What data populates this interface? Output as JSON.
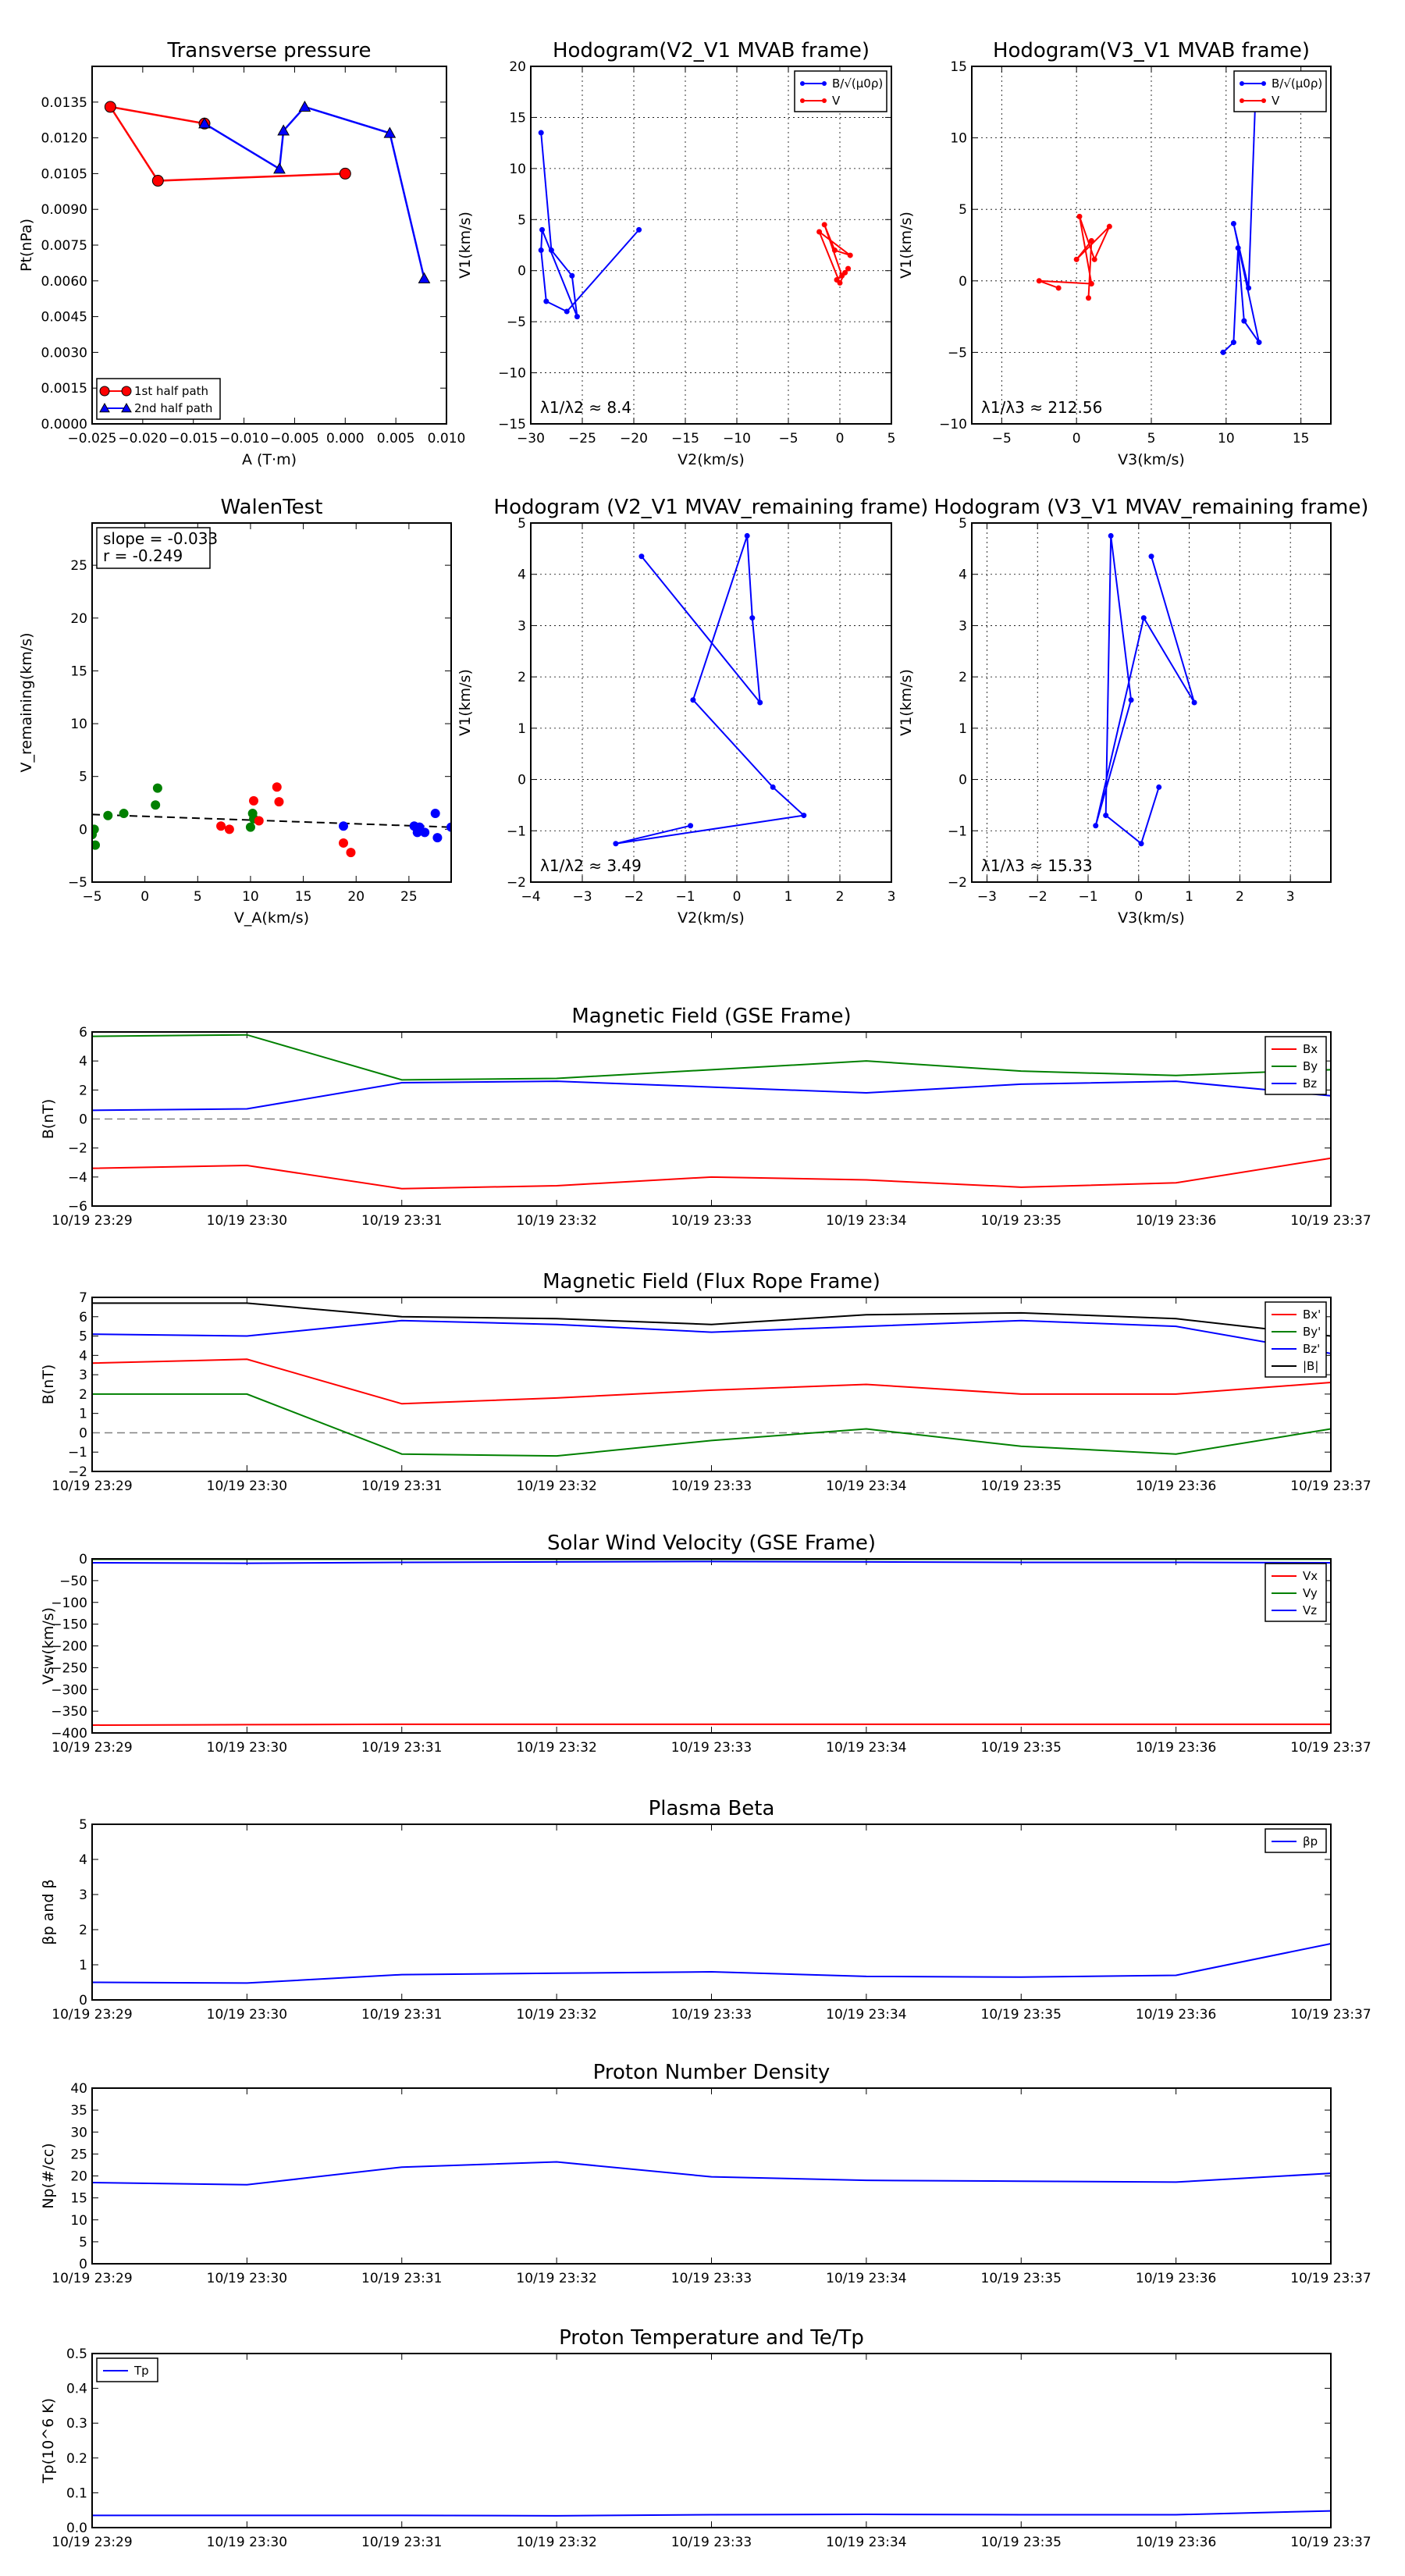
{
  "chart_data": [
    {
      "id": "tp",
      "type": "line",
      "title": "Transverse pressure",
      "xlabel": "A (T·m)",
      "ylabel": "Pt(nPa)",
      "xlim": [
        -0.025,
        0.01
      ],
      "ylim": [
        0,
        0.015
      ],
      "x_ticks": [
        "−0.025",
        "−0.020",
        "−0.015",
        "−0.010",
        "−0.005",
        "0.000",
        "0.005",
        "0.010"
      ],
      "y_ticks": [
        "0.0000",
        "0.0015",
        "0.0030",
        "0.0045",
        "0.0060",
        "0.0075",
        "0.0090",
        "0.0105",
        "0.0120",
        "0.0135"
      ],
      "legend": "lower-left",
      "series": [
        {
          "name": "1st half path",
          "color": "#ff0000",
          "marker": "circle",
          "x": [
            0.0,
            -0.0185,
            -0.0232,
            -0.0139
          ],
          "y": [
            0.0105,
            0.0102,
            0.0133,
            0.0126
          ]
        },
        {
          "name": "2nd half path",
          "color": "#0000ff",
          "marker": "triangle",
          "x": [
            -0.0139,
            -0.0065,
            -0.0061,
            -0.004,
            0.0044,
            0.0078
          ],
          "y": [
            0.0126,
            0.0107,
            0.0123,
            0.0133,
            0.0122,
            0.0061
          ]
        }
      ]
    },
    {
      "id": "hodo1",
      "type": "line",
      "title": "Hodogram(V2_V1 MVAB frame)",
      "xlabel": "V2(km/s)",
      "ylabel": "V1(km/s)",
      "xlim": [
        -30,
        5
      ],
      "ylim": [
        -15,
        20
      ],
      "grid": true,
      "x_ticks": [
        "−30",
        "−25",
        "−20",
        "−15",
        "−10",
        "−5",
        "0",
        "5"
      ],
      "y_ticks": [
        "−15",
        "−10",
        "−5",
        "0",
        "5",
        "10",
        "15",
        "20"
      ],
      "annotation": "λ1/λ2 ≈ 8.4",
      "legend": "top-right",
      "series": [
        {
          "name": "B/√(μ0ρ)",
          "color": "#0000ff",
          "x": [
            -19.5,
            -26.5,
            -28.5,
            -29.0,
            -28.9,
            -25.5,
            -26.0,
            -28.0,
            -29.0
          ],
          "y": [
            4.0,
            -4.0,
            -3.0,
            2.0,
            4.0,
            -4.5,
            -0.5,
            2.0,
            13.5
          ]
        },
        {
          "name": "V",
          "color": "#ff0000",
          "x": [
            0.2,
            -1.5,
            -0.5,
            1.0,
            -2.0,
            0.0,
            0.5,
            -0.3,
            0.8
          ],
          "y": [
            -0.5,
            4.5,
            2.0,
            1.5,
            3.8,
            -1.2,
            -0.2,
            -0.9,
            0.2
          ]
        }
      ]
    },
    {
      "id": "hodo2",
      "type": "line",
      "title": "Hodogram(V3_V1 MVAB frame)",
      "xlabel": "V3(km/s)",
      "ylabel": "V1(km/s)",
      "xlim": [
        -7,
        17
      ],
      "ylim": [
        -10,
        15
      ],
      "grid": true,
      "x_ticks": [
        "−5",
        "0",
        "5",
        "10",
        "15"
      ],
      "y_ticks": [
        "−10",
        "−5",
        "0",
        "5",
        "10",
        "15"
      ],
      "annotation": "λ1/λ3 ≈ 212.56",
      "legend": "top-right",
      "series": [
        {
          "name": "B/√(μ0ρ)",
          "color": "#0000ff",
          "x": [
            9.8,
            10.5,
            10.8,
            11.2,
            12.2,
            10.5,
            11.5,
            12.0
          ],
          "y": [
            -5.0,
            -4.3,
            2.3,
            -2.8,
            -4.3,
            4.0,
            -0.5,
            14.0
          ]
        },
        {
          "name": "V",
          "color": "#ff0000",
          "x": [
            -1.2,
            -2.5,
            1.0,
            0.2,
            1.2,
            2.2,
            0.0,
            1.0,
            0.8
          ],
          "y": [
            -0.5,
            0.0,
            -0.2,
            4.5,
            1.5,
            3.8,
            1.5,
            2.8,
            -1.2
          ]
        }
      ]
    },
    {
      "id": "walen",
      "type": "scatter",
      "title": "WalenTest",
      "xlabel": "V_A(km/s)",
      "ylabel": "V_remaining(km/s)",
      "xlim": [
        -5,
        29
      ],
      "ylim": [
        -5,
        29
      ],
      "x_ticks": [
        "−5",
        "0",
        "5",
        "10",
        "15",
        "20",
        "25"
      ],
      "y_ticks": [
        "−5",
        "0",
        "5",
        "10",
        "15",
        "20",
        "25"
      ],
      "annotation": [
        "slope = -0.033",
        "r = -0.249"
      ],
      "fit_line": {
        "x": [
          -5,
          29
        ],
        "y": [
          1.4,
          0.2
        ]
      },
      "series": [
        {
          "name": "green",
          "color": "#008000",
          "x": [
            -5.0,
            -4.8,
            -4.7,
            -3.5,
            -2.0,
            1.0,
            1.2,
            10.0,
            10.2,
            10.3
          ],
          "y": [
            -0.5,
            0.0,
            -1.5,
            1.3,
            1.5,
            2.3,
            3.9,
            0.2,
            1.5,
            1.0
          ]
        },
        {
          "name": "red",
          "color": "#ff0000",
          "x": [
            7.2,
            8.0,
            10.3,
            10.8,
            12.5,
            12.7,
            18.8,
            19.5
          ],
          "y": [
            0.3,
            0.0,
            2.7,
            0.8,
            4.0,
            2.6,
            -1.3,
            -2.2
          ]
        },
        {
          "name": "blue",
          "color": "#0000ff",
          "x": [
            18.8,
            25.5,
            25.8,
            26.0,
            26.5,
            27.5,
            27.7,
            29.0
          ],
          "y": [
            0.3,
            0.3,
            -0.3,
            0.2,
            -0.3,
            1.5,
            -0.8,
            0.2
          ]
        }
      ]
    },
    {
      "id": "hodo3",
      "type": "line",
      "title": "Hodogram (V2_V1 MVAV_remaining frame)",
      "xlabel": "V2(km/s)",
      "ylabel": "V1(km/s)",
      "xlim": [
        -4,
        3
      ],
      "ylim": [
        -2,
        5
      ],
      "grid": true,
      "x_ticks": [
        "−4",
        "−3",
        "−2",
        "−1",
        "0",
        "1",
        "2",
        "3"
      ],
      "y_ticks": [
        "−2",
        "−1",
        "0",
        "1",
        "2",
        "3",
        "4",
        "5"
      ],
      "annotation": "λ1/λ2 ≈ 3.49",
      "series": [
        {
          "name": "blue",
          "color": "#0000ff",
          "x": [
            -0.9,
            -2.35,
            1.3,
            0.7,
            -0.85,
            0.2,
            0.3,
            0.45,
            -1.85
          ],
          "y": [
            -0.9,
            -1.25,
            -0.7,
            -0.15,
            1.55,
            4.75,
            3.15,
            1.5,
            4.35
          ]
        }
      ]
    },
    {
      "id": "hodo4",
      "type": "line",
      "title": "Hodogram (V3_V1 MVAV_remaining frame)",
      "xlabel": "V3(km/s)",
      "ylabel": "V1(km/s)",
      "xlim": [
        -3.3,
        3.8
      ],
      "ylim": [
        -2,
        5
      ],
      "grid": true,
      "x_ticks": [
        "−3",
        "−2",
        "−1",
        "0",
        "1",
        "2",
        "3"
      ],
      "y_ticks": [
        "−2",
        "−1",
        "0",
        "1",
        "2",
        "3",
        "4",
        "5"
      ],
      "annotation": "λ1/λ3 ≈ 15.33",
      "series": [
        {
          "name": "blue",
          "color": "#0000ff",
          "x": [
            0.4,
            0.05,
            -0.65,
            -0.55,
            -0.15,
            -0.85,
            0.1,
            1.1,
            0.25
          ],
          "y": [
            -0.15,
            -1.25,
            -0.7,
            4.75,
            1.55,
            -0.9,
            3.15,
            1.5,
            4.35
          ]
        }
      ]
    },
    {
      "id": "bgse",
      "type": "line",
      "title": "Magnetic Field (GSE Frame)",
      "xlabel": "",
      "ylabel": "B(nT)",
      "categories": [
        "10/19 23:29",
        "10/19 23:30",
        "10/19 23:31",
        "10/19 23:32",
        "10/19 23:33",
        "10/19 23:34",
        "10/19 23:35",
        "10/19 23:36",
        "10/19 23:37"
      ],
      "ylim": [
        -6,
        6
      ],
      "y_ticks": [
        "−6",
        "−4",
        "−2",
        "0",
        "2",
        "4",
        "6"
      ],
      "zero_line": true,
      "legend": "top-right",
      "series": [
        {
          "name": "Bx",
          "color": "#ff0000",
          "values": [
            -3.4,
            -3.2,
            -4.8,
            -4.6,
            -4.0,
            -4.2,
            -4.7,
            -4.4,
            -2.7
          ]
        },
        {
          "name": "By",
          "color": "#008000",
          "values": [
            5.7,
            5.8,
            2.7,
            2.8,
            3.4,
            4.0,
            3.3,
            3.0,
            3.4
          ]
        },
        {
          "name": "Bz",
          "color": "#0000ff",
          "values": [
            0.6,
            0.7,
            2.5,
            2.6,
            2.2,
            1.8,
            2.4,
            2.6,
            1.6
          ]
        }
      ]
    },
    {
      "id": "bfr",
      "type": "line",
      "title": "Magnetic Field (Flux Rope Frame)",
      "xlabel": "",
      "ylabel": "B(nT)",
      "categories": [
        "10/19 23:29",
        "10/19 23:30",
        "10/19 23:31",
        "10/19 23:32",
        "10/19 23:33",
        "10/19 23:34",
        "10/19 23:35",
        "10/19 23:36",
        "10/19 23:37"
      ],
      "ylim": [
        -2,
        7
      ],
      "y_ticks": [
        "−2",
        "−1",
        "0",
        "1",
        "2",
        "3",
        "4",
        "5",
        "6",
        "7"
      ],
      "zero_line": true,
      "legend": "top-right",
      "series": [
        {
          "name": "Bx'",
          "color": "#ff0000",
          "values": [
            3.6,
            3.8,
            1.5,
            1.8,
            2.2,
            2.5,
            2.0,
            2.0,
            2.6
          ]
        },
        {
          "name": "By'",
          "color": "#008000",
          "values": [
            2.0,
            2.0,
            -1.1,
            -1.2,
            -0.4,
            0.2,
            -0.7,
            -1.1,
            0.2
          ]
        },
        {
          "name": "Bz'",
          "color": "#0000ff",
          "values": [
            5.1,
            5.0,
            5.8,
            5.6,
            5.2,
            5.5,
            5.8,
            5.5,
            4.1
          ]
        },
        {
          "name": "|B|",
          "color": "#000000",
          "values": [
            6.7,
            6.7,
            6.0,
            5.9,
            5.6,
            6.1,
            6.2,
            5.9,
            5.0
          ]
        }
      ]
    },
    {
      "id": "vsw",
      "type": "line",
      "title": "Solar Wind Velocity (GSE Frame)",
      "xlabel": "",
      "ylabel": "Vsw(km/s)",
      "categories": [
        "10/19 23:29",
        "10/19 23:30",
        "10/19 23:31",
        "10/19 23:32",
        "10/19 23:33",
        "10/19 23:34",
        "10/19 23:35",
        "10/19 23:36",
        "10/19 23:37"
      ],
      "ylim": [
        -400,
        0
      ],
      "y_ticks": [
        "−400",
        "−350",
        "−300",
        "−250",
        "−200",
        "−150",
        "−100",
        "−50",
        "0"
      ],
      "legend": "top-right",
      "series": [
        {
          "name": "Vx",
          "color": "#ff0000",
          "values": [
            -382,
            -381,
            -380,
            -380,
            -380,
            -380,
            -380,
            -380,
            -380
          ]
        },
        {
          "name": "Vy",
          "color": "#008000",
          "values": [
            -1,
            -1,
            -1,
            -1,
            -1,
            -1,
            -1,
            -1,
            -1
          ]
        },
        {
          "name": "Vz",
          "color": "#0000ff",
          "values": [
            -9,
            -10,
            -8,
            -7,
            -6,
            -7,
            -8,
            -8,
            -9
          ]
        }
      ]
    },
    {
      "id": "beta",
      "type": "line",
      "title": "Plasma Beta",
      "xlabel": "",
      "ylabel": "βp and β",
      "categories": [
        "10/19 23:29",
        "10/19 23:30",
        "10/19 23:31",
        "10/19 23:32",
        "10/19 23:33",
        "10/19 23:34",
        "10/19 23:35",
        "10/19 23:36",
        "10/19 23:37"
      ],
      "ylim": [
        0,
        5
      ],
      "y_ticks": [
        "0",
        "1",
        "2",
        "3",
        "4",
        "5"
      ],
      "legend": "top-right",
      "series": [
        {
          "name": "βp",
          "color": "#0000ff",
          "values": [
            0.5,
            0.48,
            0.72,
            0.76,
            0.8,
            0.67,
            0.65,
            0.7,
            1.6
          ]
        }
      ]
    },
    {
      "id": "np",
      "type": "line",
      "title": "Proton Number Density",
      "xlabel": "",
      "ylabel": "Np(#/cc)",
      "categories": [
        "10/19 23:29",
        "10/19 23:30",
        "10/19 23:31",
        "10/19 23:32",
        "10/19 23:33",
        "10/19 23:34",
        "10/19 23:35",
        "10/19 23:36",
        "10/19 23:37"
      ],
      "ylim": [
        0,
        40
      ],
      "y_ticks": [
        "0",
        "5",
        "10",
        "15",
        "20",
        "25",
        "30",
        "35",
        "40"
      ],
      "series": [
        {
          "name": "",
          "color": "#0000ff",
          "values": [
            18.5,
            18.0,
            22.0,
            23.2,
            19.8,
            19.0,
            18.8,
            18.6,
            20.6
          ]
        }
      ]
    },
    {
      "id": "tp2",
      "type": "line",
      "title": "Proton Temperature and Te/Tp",
      "xlabel": "",
      "ylabel": "Tp(10^6 K)",
      "categories": [
        "10/19 23:29",
        "10/19 23:30",
        "10/19 23:31",
        "10/19 23:32",
        "10/19 23:33",
        "10/19 23:34",
        "10/19 23:35",
        "10/19 23:36",
        "10/19 23:37"
      ],
      "ylim": [
        0,
        0.5
      ],
      "y_ticks": [
        "0.0",
        "0.1",
        "0.2",
        "0.3",
        "0.4",
        "0.5"
      ],
      "legend": "top-left",
      "series": [
        {
          "name": "Tp",
          "color": "#0000ff",
          "values": [
            0.035,
            0.035,
            0.035,
            0.034,
            0.037,
            0.038,
            0.037,
            0.037,
            0.048
          ]
        }
      ]
    }
  ]
}
